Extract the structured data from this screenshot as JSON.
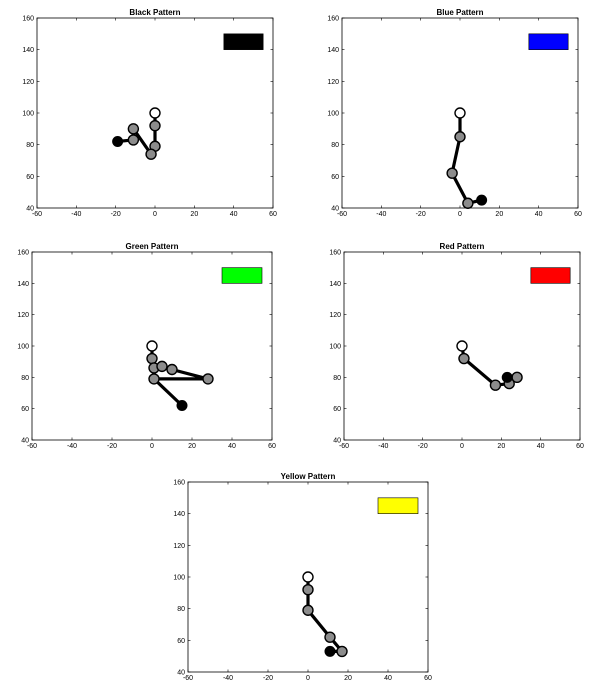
{
  "chart_data": [
    {
      "type": "scatter",
      "title": "Black Pattern",
      "xlim": [
        -60,
        60
      ],
      "ylim": [
        40,
        160
      ],
      "xticks": [
        -60,
        -40,
        -20,
        0,
        20,
        40,
        60
      ],
      "yticks": [
        40,
        60,
        80,
        100,
        120,
        140,
        160
      ],
      "xtick_labels": [
        "-60",
        "-40",
        "-20",
        "0",
        "20",
        "40",
        "60"
      ],
      "ytick_labels": [
        "40",
        "60",
        "80",
        "100",
        "120",
        "140",
        "160"
      ],
      "legend_color": "#000000",
      "start": {
        "x": 0,
        "y": 100
      },
      "points": [
        {
          "x": 0,
          "y": 92
        },
        {
          "x": 0,
          "y": 79
        },
        {
          "x": -2,
          "y": 74
        },
        {
          "x": -11,
          "y": 90
        },
        {
          "x": -11,
          "y": 83
        },
        {
          "x": -19,
          "y": 82
        }
      ],
      "end": {
        "x": -19,
        "y": 82
      }
    },
    {
      "type": "scatter",
      "title": "Blue Pattern",
      "xlim": [
        -60,
        60
      ],
      "ylim": [
        40,
        160
      ],
      "xticks": [
        -60,
        -40,
        -20,
        0,
        20,
        40,
        60
      ],
      "yticks": [
        40,
        60,
        80,
        100,
        120,
        140,
        160
      ],
      "xtick_labels": [
        "-60",
        "-40",
        "-20",
        "0",
        "20",
        "40",
        "60"
      ],
      "ytick_labels": [
        "40",
        "60",
        "80",
        "100",
        "120",
        "140",
        "160"
      ],
      "legend_color": "#0000ff",
      "start": {
        "x": 0,
        "y": 100
      },
      "points": [
        {
          "x": 0,
          "y": 85
        },
        {
          "x": -4,
          "y": 62
        },
        {
          "x": 4,
          "y": 43
        },
        {
          "x": 11,
          "y": 45
        }
      ],
      "end": {
        "x": 11,
        "y": 45
      }
    },
    {
      "type": "scatter",
      "title": "Green Pattern",
      "xlim": [
        -60,
        60
      ],
      "ylim": [
        40,
        160
      ],
      "xticks": [
        -60,
        -40,
        -20,
        0,
        20,
        40,
        60
      ],
      "yticks": [
        40,
        60,
        80,
        100,
        120,
        140,
        160
      ],
      "xtick_labels": [
        "-60",
        "-40",
        "-20",
        "0",
        "20",
        "40",
        "60"
      ],
      "ytick_labels": [
        "40",
        "60",
        "80",
        "100",
        "120",
        "140",
        "160"
      ],
      "legend_color": "#00ff00",
      "start": {
        "x": 0,
        "y": 100
      },
      "points": [
        {
          "x": 0,
          "y": 92
        },
        {
          "x": 1,
          "y": 86
        },
        {
          "x": 5,
          "y": 87
        },
        {
          "x": 10,
          "y": 85
        },
        {
          "x": 28,
          "y": 79
        },
        {
          "x": 1,
          "y": 79
        },
        {
          "x": 15,
          "y": 62
        }
      ],
      "end": {
        "x": 15,
        "y": 62
      }
    },
    {
      "type": "scatter",
      "title": "Red Pattern",
      "xlim": [
        -60,
        60
      ],
      "ylim": [
        40,
        160
      ],
      "xticks": [
        -60,
        -40,
        -20,
        0,
        20,
        40,
        60
      ],
      "yticks": [
        40,
        60,
        80,
        100,
        120,
        140,
        160
      ],
      "xtick_labels": [
        "-60",
        "-40",
        "-20",
        "0",
        "20",
        "40",
        "60"
      ],
      "ytick_labels": [
        "40",
        "60",
        "80",
        "100",
        "120",
        "140",
        "160"
      ],
      "legend_color": "#ff0000",
      "start": {
        "x": 0,
        "y": 100
      },
      "points": [
        {
          "x": 1,
          "y": 92
        },
        {
          "x": 17,
          "y": 75
        },
        {
          "x": 24,
          "y": 76
        },
        {
          "x": 28,
          "y": 80
        },
        {
          "x": 23,
          "y": 80
        }
      ],
      "end": {
        "x": 23,
        "y": 80
      }
    },
    {
      "type": "scatter",
      "title": "Yellow Pattern",
      "xlim": [
        -60,
        60
      ],
      "ylim": [
        40,
        160
      ],
      "xticks": [
        -60,
        -40,
        -20,
        0,
        20,
        40,
        60
      ],
      "yticks": [
        40,
        60,
        80,
        100,
        120,
        140,
        160
      ],
      "xtick_labels": [
        "-60",
        "-40",
        "-20",
        "0",
        "20",
        "40",
        "60"
      ],
      "ytick_labels": [
        "40",
        "60",
        "80",
        "100",
        "120",
        "140",
        "160"
      ],
      "legend_color": "#ffff00",
      "start": {
        "x": 0,
        "y": 100
      },
      "points": [
        {
          "x": 0,
          "y": 92
        },
        {
          "x": 0,
          "y": 79
        },
        {
          "x": 11,
          "y": 62
        },
        {
          "x": 17,
          "y": 53
        },
        {
          "x": 11,
          "y": 53
        }
      ],
      "end": {
        "x": 11,
        "y": 53
      }
    }
  ]
}
